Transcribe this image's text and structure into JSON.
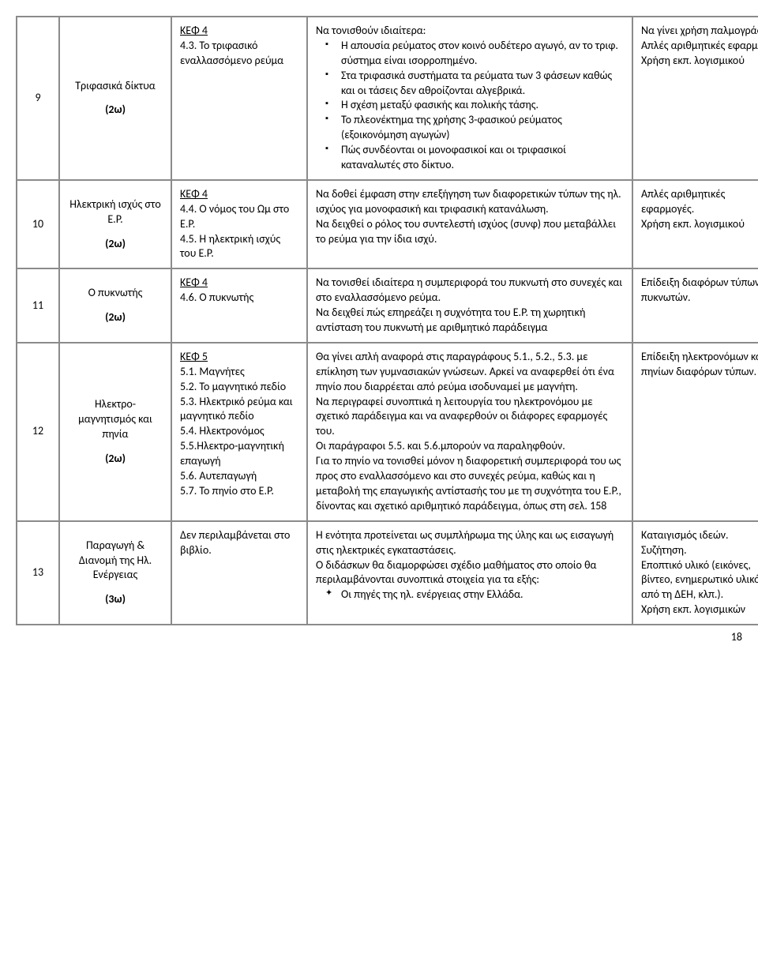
{
  "page_number": "18",
  "rows": [
    {
      "num": "9",
      "topic": {
        "title": "Τριφασικά δίκτυα",
        "hours": "(2ω)"
      },
      "chapter": {
        "header": "ΚΕΦ 4",
        "items": [
          "4.3. Το τριφασικό εναλλασσόμενο ρεύμα"
        ]
      },
      "guidance": {
        "intro": "Να τονισθούν ιδιαίτερα:",
        "bullets_style": "sq",
        "bullets": [
          "Η απουσία ρεύματος στον κοινό ουδέτερο αγωγό, αν το τριφ. σύστημα είναι ισορροπημένο.",
          "Στα τριφασικά συστήματα τα ρεύματα των 3 φάσεων καθώς και οι τάσεις δεν αθροίζονται αλγεβρικά.",
          "Η σχέση μεταξύ φασικής και πολικής τάσης.",
          "Το πλεονέκτημα της χρήσης 3-φασικού ρεύματος (εξοικονόμηση αγωγών)",
          "Πώς συνδέονται οι μονοφασικοί και οι τριφασικοί καταναλωτές στο δίκτυο."
        ]
      },
      "notes": {
        "lines": [
          "Να γίνει χρήση παλμογράφου.",
          "Απλές αριθμητικές εφαρμογές",
          "Χρήση εκπ. λογισμικού"
        ]
      }
    },
    {
      "num": "10",
      "topic": {
        "title": "Ηλεκτρική ισχύς στο Ε.Ρ.",
        "hours": "(2ω)"
      },
      "chapter": {
        "header": "ΚΕΦ 4",
        "items": [
          "4.4. Ο νόμος του Ωμ στο Ε.Ρ.",
          "4.5. Η ηλεκτρική ισχύς του Ε.Ρ."
        ]
      },
      "guidance": {
        "paragraphs": [
          "Να δοθεί έμφαση στην επεξήγηση των διαφορετικών τύπων της ηλ. ισχύος για μονοφασική και τριφασική κατανάλωση.",
          "Να δειχθεί ο ρόλος του συντελεστή ισχύος (συνφ) που μεταβάλλει το ρεύμα για την ίδια ισχύ."
        ]
      },
      "notes": {
        "lines": [
          "Απλές αριθμητικές εφαρμογές.",
          "Χρήση εκπ. λογισμικού"
        ]
      }
    },
    {
      "num": "11",
      "topic": {
        "title": "Ο πυκνωτής",
        "hours": "(2ω)"
      },
      "chapter": {
        "header": "ΚΕΦ 4",
        "items": [
          "4.6. Ο πυκνωτής"
        ]
      },
      "guidance": {
        "paragraphs": [
          "Να τονισθεί ιδιαίτερα η συμπεριφορά του πυκνωτή στο συνεχές και στο εναλλασσόμενο ρεύμα.",
          "Να δειχθεί πώς επηρεάζει η συχνότητα του Ε.Ρ. τη χωρητική αντίσταση του πυκνωτή με αριθμητικό παράδειγμα"
        ]
      },
      "notes": {
        "lines": [
          "Επίδειξη διαφόρων τύπων πυκνωτών."
        ]
      }
    },
    {
      "num": "12",
      "topic": {
        "title": "Ηλεκτρο-μαγνητισμός και πηνία",
        "hours": "(2ω)"
      },
      "chapter": {
        "header": "ΚΕΦ 5",
        "items": [
          "5.1. Μαγνήτες",
          "5.2. Το μαγνητικό πεδίο",
          "5.3. Ηλεκτρικό ρεύμα και μαγνητικό πεδίο",
          "5.4. Ηλεκτρονόμος",
          "5.5.Ηλεκτρο-μαγνητική επαγωγή",
          "5.6. Αυτεπαγωγή",
          "5.7. Το πηνίο στο Ε.Ρ."
        ]
      },
      "guidance": {
        "paragraphs": [
          "Θα γίνει απλή αναφορά στις  παραγράφους 5.1., 5.2., 5.3. με επίκληση των γυμνασιακών γνώσεων. Αρκεί να αναφερθεί ότι ένα πηνίο που διαρρέεται από ρεύμα ισοδυναμεί με μαγνήτη.",
          "Να περιγραφεί συνοπτικά η λειτουργία του ηλεκτρονόμου με σχετικό παράδειγμα και να αναφερθούν οι διάφορες εφαρμογές του.",
          "Οι παράγραφοι 5.5. και 5.6.μπορούν να παραληφθούν.",
          "Για το πηνίο να τονισθεί μόνον η διαφορετική συμπεριφορά του ως προς  στο εναλλασσόμενο και στο συνεχές ρεύμα, καθώς και  η μεταβολή της επαγωγικής αντίστασής του με τη συχνότητα του Ε.Ρ., δίνοντας και σχετικό αριθμητικό παράδειγμα, όπως στη σελ. 158"
        ]
      },
      "notes": {
        "lines": [
          "Επίδειξη ηλεκτρονόμων και πηνίων διαφόρων τύπων."
        ]
      }
    },
    {
      "num": "13",
      "topic": {
        "title": "Παραγωγή & Διανομή της Ηλ. Ενέργειας",
        "hours": "(3ω)"
      },
      "chapter": {
        "plain": "Δεν περιλαμβάνεται στο βιβλίο."
      },
      "guidance": {
        "paragraphs": [
          "Η ενότητα προτείνεται ως συμπλήρωμα της ύλης και ως εισαγωγή στις ηλεκτρικές εγκαταστάσεις.",
          "Ο διδάσκων θα διαμορφώσει σχέδιο μαθήματος στο οποίο θα περιλαμβάνονται συνοπτικά στοιχεία για τα εξής:"
        ],
        "bullets_style": "diamond",
        "bullets": [
          "Οι πηγές της ηλ. ενέργειας στην Ελλάδα."
        ]
      },
      "notes": {
        "lines": [
          "Καταιγισμός ιδεών.",
          "Συζήτηση.",
          "Εποπτικό υλικό (εικόνες, βίντεο, ενημερωτικό υλικό από τη ΔΕΗ, κλπ.).",
          "Χρήση εκπ. λογισμικών"
        ]
      }
    }
  ]
}
